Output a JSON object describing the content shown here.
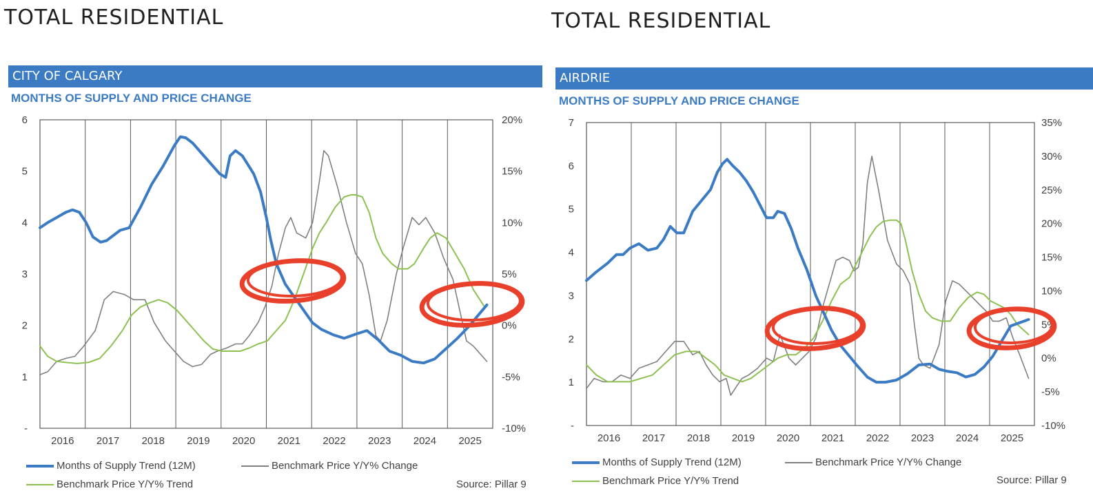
{
  "colors": {
    "supply": "#3b7bc4",
    "change": "#7f7f7f",
    "trend": "#8cc152",
    "annotation": "#e8402a",
    "header_bar": "#3b7bc4"
  },
  "panels": [
    {
      "main_title": "TOTAL RESIDENTIAL",
      "region": "CITY OF CALGARY",
      "subtitle": "MONTHS OF SUPPLY AND PRICE CHANGE",
      "legend": {
        "supply": "Months of Supply Trend (12M)",
        "change": "Benchmark Price Y/Y% Change",
        "trend": "Benchmark Price Y/Y% Trend"
      },
      "source": "Source: Pillar 9"
    },
    {
      "main_title": "TOTAL RESIDENTIAL",
      "region": "AIRDRIE",
      "subtitle": "MONTHS OF SUPPLY AND PRICE CHANGE",
      "legend": {
        "supply": "Months of Supply Trend (12M)",
        "change": "Benchmark Price Y/Y% Change",
        "trend": "Benchmark Price Y/Y% Trend"
      },
      "source": "Source: Pillar 9"
    }
  ],
  "chart_data": [
    {
      "type": "line",
      "title": "MONTHS OF SUPPLY AND PRICE CHANGE",
      "region": "CITY OF CALGARY",
      "x_range": [
        2015.58,
        2025.58
      ],
      "categories": [
        "2016",
        "2017",
        "2018",
        "2019",
        "2020",
        "2021",
        "2022",
        "2023",
        "2024",
        "2025"
      ],
      "y_left": {
        "min": 0,
        "max": 6,
        "ticks": [
          "-",
          "1",
          "2",
          "3",
          "4",
          "5",
          "6"
        ]
      },
      "y_right": {
        "min": -10,
        "max": 20,
        "ticks": [
          "-10%",
          "-5%",
          "0%",
          "5%",
          "10%",
          "15%",
          "20%"
        ]
      },
      "grid": "vertical year separators",
      "legend_position": "bottom",
      "series": [
        {
          "name": "Months of Supply Trend (12M)",
          "axis": "left",
          "style": "supply",
          "x": [
            2015.58,
            2015.75,
            2015.95,
            2016.15,
            2016.3,
            2016.45,
            2016.6,
            2016.75,
            2016.92,
            2017.05,
            2017.2,
            2017.35,
            2017.55,
            2017.8,
            2018.05,
            2018.3,
            2018.55,
            2018.68,
            2018.8,
            2018.95,
            2019.15,
            2019.35,
            2019.55,
            2019.68,
            2019.78,
            2019.9,
            2020.05,
            2020.3,
            2020.45,
            2020.58,
            2020.68,
            2020.8,
            2021.0,
            2021.2,
            2021.4,
            2021.6,
            2021.8,
            2022.05,
            2022.3,
            2022.55,
            2022.8,
            2023.05,
            2023.3,
            2023.55,
            2023.8,
            2024.05,
            2024.3,
            2024.55,
            2024.8,
            2025.05,
            2025.45
          ],
          "values": [
            3.9,
            4.0,
            4.1,
            4.2,
            4.25,
            4.2,
            4.0,
            3.72,
            3.62,
            3.65,
            3.75,
            3.85,
            3.9,
            4.3,
            4.75,
            5.1,
            5.5,
            5.67,
            5.65,
            5.55,
            5.35,
            5.15,
            4.95,
            4.88,
            5.3,
            5.4,
            5.3,
            4.95,
            4.6,
            4.1,
            3.65,
            3.2,
            2.8,
            2.55,
            2.3,
            2.05,
            1.92,
            1.82,
            1.75,
            1.83,
            1.9,
            1.72,
            1.5,
            1.42,
            1.3,
            1.27,
            1.35,
            1.55,
            1.75,
            1.98,
            2.4
          ]
        },
        {
          "name": "Benchmark Price Y/Y% Change",
          "axis": "right",
          "style": "change",
          "x": [
            2015.58,
            2015.75,
            2015.95,
            2016.15,
            2016.35,
            2016.55,
            2016.8,
            2017.0,
            2017.2,
            2017.45,
            2017.65,
            2017.9,
            2018.1,
            2018.35,
            2018.55,
            2018.75,
            2018.95,
            2019.15,
            2019.35,
            2019.5,
            2019.7,
            2019.9,
            2020.05,
            2020.2,
            2020.4,
            2020.55,
            2020.7,
            2020.85,
            2021.0,
            2021.12,
            2021.25,
            2021.45,
            2021.6,
            2021.75,
            2021.85,
            2021.95,
            2022.15,
            2022.35,
            2022.55,
            2022.7,
            2022.85,
            2023.0,
            2023.1,
            2023.25,
            2023.45,
            2023.6,
            2023.8,
            2023.95,
            2024.1,
            2024.3,
            2024.5,
            2024.7,
            2024.85,
            2025.0,
            2025.15,
            2025.45
          ],
          "values": [
            -4.8,
            -4.5,
            -3.5,
            -3.2,
            -3.0,
            -2.0,
            -0.5,
            2.5,
            3.3,
            3.0,
            2.5,
            2.5,
            0.3,
            -1.5,
            -2.5,
            -3.5,
            -4.0,
            -3.8,
            -2.8,
            -2.5,
            -2.2,
            -1.8,
            -1.8,
            -1.0,
            0.3,
            1.8,
            3.8,
            7.0,
            9.5,
            10.5,
            9.0,
            8.5,
            10.0,
            14.0,
            17.0,
            16.5,
            13.5,
            10.0,
            7.0,
            6.0,
            3.0,
            -1.0,
            -1.5,
            0.5,
            5.0,
            7.5,
            10.5,
            9.8,
            10.5,
            9.0,
            6.5,
            4.5,
            1.5,
            -1.5,
            -2.0,
            -3.5
          ]
        },
        {
          "name": "Benchmark Price Y/Y% Trend",
          "axis": "right",
          "style": "trend",
          "x": [
            2015.58,
            2015.75,
            2015.95,
            2016.15,
            2016.4,
            2016.65,
            2016.9,
            2017.15,
            2017.4,
            2017.6,
            2017.8,
            2018.0,
            2018.2,
            2018.4,
            2018.6,
            2018.8,
            2019.0,
            2019.2,
            2019.4,
            2019.6,
            2019.8,
            2020.0,
            2020.2,
            2020.4,
            2020.6,
            2020.8,
            2021.0,
            2021.2,
            2021.4,
            2021.6,
            2021.75,
            2021.9,
            2022.1,
            2022.3,
            2022.45,
            2022.55,
            2022.7,
            2022.85,
            2023.0,
            2023.15,
            2023.35,
            2023.5,
            2023.7,
            2023.85,
            2024.05,
            2024.2,
            2024.35,
            2024.55,
            2024.75,
            2024.95,
            2025.15,
            2025.4
          ],
          "values": [
            -2.0,
            -3.0,
            -3.5,
            -3.6,
            -3.7,
            -3.6,
            -3.2,
            -2.0,
            -0.5,
            1.0,
            1.8,
            2.2,
            2.5,
            2.2,
            1.5,
            0.5,
            -0.5,
            -1.5,
            -2.3,
            -2.5,
            -2.5,
            -2.5,
            -2.2,
            -1.8,
            -1.5,
            -0.5,
            0.5,
            2.5,
            5.0,
            7.5,
            9.0,
            10.0,
            11.5,
            12.5,
            12.7,
            12.7,
            12.5,
            11.0,
            8.5,
            7.0,
            6.0,
            5.5,
            5.5,
            6.0,
            7.5,
            8.5,
            9.0,
            8.5,
            7.0,
            5.5,
            3.5,
            1.8
          ]
        }
      ]
    },
    {
      "type": "line",
      "title": "MONTHS OF SUPPLY AND PRICE CHANGE",
      "region": "AIRDRIE",
      "x_range": [
        2015.58,
        2025.58
      ],
      "categories": [
        "2016",
        "2017",
        "2018",
        "2019",
        "2020",
        "2021",
        "2022",
        "2023",
        "2024",
        "2025"
      ],
      "y_left": {
        "min": 0,
        "max": 7,
        "ticks": [
          "-",
          "1",
          "2",
          "3",
          "4",
          "5",
          "6",
          "7"
        ]
      },
      "y_right": {
        "min": -10,
        "max": 35,
        "ticks": [
          "-10%",
          "-5%",
          "0%",
          "5%",
          "10%",
          "15%",
          "20%",
          "25%",
          "30%",
          "35%"
        ]
      },
      "grid": "vertical year separators",
      "legend_position": "bottom",
      "series": [
        {
          "name": "Months of Supply Trend (12M)",
          "axis": "left",
          "style": "supply",
          "x": [
            2015.58,
            2015.8,
            2016.05,
            2016.25,
            2016.4,
            2016.55,
            2016.75,
            2016.95,
            2017.15,
            2017.3,
            2017.45,
            2017.6,
            2017.75,
            2017.95,
            2018.15,
            2018.35,
            2018.5,
            2018.62,
            2018.72,
            2018.85,
            2019.0,
            2019.15,
            2019.3,
            2019.45,
            2019.6,
            2019.75,
            2019.85,
            2020.0,
            2020.15,
            2020.3,
            2020.5,
            2020.7,
            2020.9,
            2021.05,
            2021.25,
            2021.45,
            2021.65,
            2021.85,
            2022.05,
            2022.25,
            2022.5,
            2022.75,
            2023.0,
            2023.25,
            2023.45,
            2023.65,
            2023.85,
            2024.05,
            2024.25,
            2024.45,
            2024.65,
            2024.85,
            2025.05,
            2025.45
          ],
          "values": [
            3.35,
            3.55,
            3.75,
            3.95,
            3.95,
            4.1,
            4.2,
            4.05,
            4.1,
            4.3,
            4.6,
            4.45,
            4.45,
            4.95,
            5.2,
            5.45,
            5.85,
            6.05,
            6.15,
            6.0,
            5.85,
            5.65,
            5.4,
            5.1,
            4.8,
            4.8,
            4.95,
            4.9,
            4.55,
            4.1,
            3.6,
            3.0,
            2.55,
            2.2,
            1.85,
            1.6,
            1.35,
            1.12,
            1.0,
            1.0,
            1.05,
            1.2,
            1.4,
            1.42,
            1.3,
            1.25,
            1.22,
            1.12,
            1.18,
            1.35,
            1.6,
            1.95,
            2.3,
            2.45
          ]
        },
        {
          "name": "Benchmark Price Y/Y% Change",
          "axis": "right",
          "style": "change",
          "x": [
            2015.58,
            2015.75,
            2015.95,
            2016.15,
            2016.35,
            2016.55,
            2016.75,
            2016.95,
            2017.15,
            2017.35,
            2017.55,
            2017.75,
            2017.95,
            2018.1,
            2018.25,
            2018.4,
            2018.55,
            2018.7,
            2018.8,
            2018.9,
            2019.05,
            2019.2,
            2019.4,
            2019.6,
            2019.75,
            2019.9,
            2020.1,
            2020.25,
            2020.4,
            2020.55,
            2020.7,
            2020.85,
            2021.0,
            2021.15,
            2021.3,
            2021.45,
            2021.55,
            2021.65,
            2021.75,
            2021.85,
            2021.95,
            2022.1,
            2022.3,
            2022.5,
            2022.65,
            2022.8,
            2022.9,
            2023.0,
            2023.1,
            2023.25,
            2023.45,
            2023.6,
            2023.75,
            2023.9,
            2024.05,
            2024.2,
            2024.35,
            2024.5,
            2024.65,
            2024.8,
            2024.95,
            2025.1,
            2025.25,
            2025.45
          ],
          "values": [
            -4.5,
            -3.0,
            -3.5,
            -3.5,
            -2.5,
            -3.0,
            -1.5,
            -1.0,
            -0.5,
            1.0,
            2.5,
            2.5,
            0.5,
            1.0,
            -1.0,
            -2.5,
            -3.5,
            -3.0,
            -5.5,
            -4.5,
            -3.0,
            -2.5,
            -1.5,
            0.0,
            -0.5,
            3.5,
            0.0,
            -1.0,
            0.0,
            1.0,
            3.0,
            7.5,
            11.0,
            14.5,
            15.0,
            14.5,
            13.0,
            13.5,
            17.0,
            26.0,
            30.0,
            25.0,
            17.5,
            14.0,
            13.0,
            11.0,
            5.0,
            0.0,
            -1.0,
            -1.5,
            2.0,
            8.5,
            11.5,
            11.0,
            10.0,
            9.0,
            8.0,
            7.0,
            5.5,
            5.5,
            6.0,
            3.0,
            0.5,
            -3.0
          ]
        },
        {
          "name": "Benchmark Price Y/Y% Trend",
          "axis": "right",
          "style": "trend",
          "x": [
            2015.58,
            2015.8,
            2016.05,
            2016.3,
            2016.55,
            2016.8,
            2017.05,
            2017.3,
            2017.55,
            2017.8,
            2018.05,
            2018.25,
            2018.45,
            2018.65,
            2018.85,
            2019.05,
            2019.25,
            2019.45,
            2019.65,
            2019.85,
            2020.05,
            2020.25,
            2020.45,
            2020.65,
            2020.85,
            2021.05,
            2021.25,
            2021.45,
            2021.6,
            2021.75,
            2021.9,
            2022.05,
            2022.2,
            2022.35,
            2022.5,
            2022.6,
            2022.7,
            2022.85,
            2023.0,
            2023.15,
            2023.3,
            2023.5,
            2023.7,
            2023.9,
            2024.1,
            2024.3,
            2024.45,
            2024.6,
            2024.75,
            2024.9,
            2025.05,
            2025.2,
            2025.45
          ],
          "values": [
            -1.0,
            -2.5,
            -3.5,
            -3.5,
            -3.5,
            -3.0,
            -2.5,
            -1.0,
            0.5,
            1.0,
            1.0,
            0.0,
            -1.0,
            -2.5,
            -3.0,
            -3.5,
            -3.0,
            -2.0,
            -1.0,
            0.0,
            0.5,
            0.5,
            1.5,
            3.0,
            5.5,
            8.5,
            11.0,
            12.0,
            14.0,
            16.0,
            18.0,
            19.5,
            20.3,
            20.5,
            20.5,
            20.0,
            17.5,
            13.0,
            9.5,
            7.0,
            6.0,
            5.5,
            5.5,
            7.5,
            9.0,
            9.8,
            9.5,
            8.5,
            8.0,
            7.5,
            6.5,
            5.0,
            3.5
          ]
        }
      ]
    }
  ]
}
